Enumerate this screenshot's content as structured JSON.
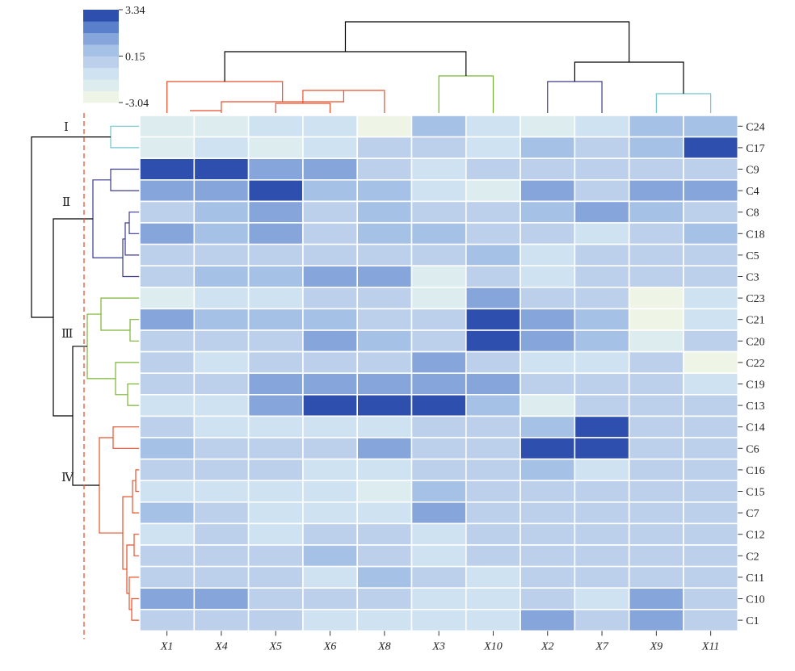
{
  "chart_data": {
    "type": "heatmap",
    "columns": [
      "X1",
      "X4",
      "X5",
      "X6",
      "X8",
      "X3",
      "X10",
      "X2",
      "X7",
      "X9",
      "X11"
    ],
    "rows": [
      "C24",
      "C17",
      "C9",
      "C4",
      "C8",
      "C18",
      "C5",
      "C3",
      "C23",
      "C21",
      "C20",
      "C22",
      "C19",
      "C13",
      "C14",
      "C6",
      "C16",
      "C15",
      "C7",
      "C12",
      "C2",
      "C11",
      "C10",
      "C1"
    ],
    "values": [
      [
        -1.9,
        -1.9,
        -1.4,
        -1.2,
        -3.0,
        0.5,
        -1.2,
        -2.2,
        -1.4,
        0.3,
        0.5
      ],
      [
        -2.0,
        -1.2,
        -1.8,
        -1.2,
        0.1,
        -0.5,
        -1.0,
        0.2,
        -0.1,
        0.5,
        2.8
      ],
      [
        2.7,
        3.3,
        1.6,
        1.5,
        0.1,
        -1.3,
        -0.3,
        -0.1,
        -0.3,
        -0.2,
        -0.3
      ],
      [
        1.4,
        1.4,
        2.6,
        0.3,
        0.3,
        -1.4,
        -2.2,
        1.4,
        -0.3,
        1.3,
        1.3
      ],
      [
        0.1,
        0.5,
        1.5,
        0.1,
        0.4,
        0.1,
        0.1,
        0.3,
        1.4,
        0.2,
        0.1
      ],
      [
        1.5,
        0.3,
        1.5,
        0.0,
        0.3,
        0.2,
        -0.1,
        0.1,
        -1.0,
        0.0,
        0.2
      ],
      [
        -0.2,
        -0.1,
        -0.2,
        -0.1,
        -0.1,
        -0.1,
        0.3,
        -0.8,
        -0.3,
        -0.2,
        0.0
      ],
      [
        -0.1,
        0.3,
        0.2,
        1.5,
        1.5,
        -1.7,
        -0.6,
        -0.9,
        -0.4,
        0.0,
        -0.1
      ],
      [
        -2.1,
        -0.8,
        -0.9,
        -0.3,
        -0.3,
        -2.1,
        1.5,
        -0.6,
        -0.3,
        -2.5,
        -0.8
      ],
      [
        1.6,
        0.2,
        0.2,
        0.2,
        -0.1,
        0.1,
        3.3,
        1.4,
        0.4,
        -3.0,
        -0.7
      ],
      [
        -0.3,
        -0.3,
        -0.3,
        1.6,
        0.3,
        -0.1,
        2.7,
        1.4,
        0.3,
        -2.0,
        -0.3
      ],
      [
        -0.3,
        -1.0,
        -0.5,
        -0.5,
        -0.1,
        1.5,
        0.1,
        -1.0,
        -0.7,
        -0.5,
        -3.0
      ],
      [
        0.1,
        -0.3,
        1.5,
        1.5,
        1.3,
        1.6,
        1.5,
        -0.6,
        -0.3,
        -0.1,
        -0.9
      ],
      [
        -1.3,
        -0.9,
        1.5,
        2.6,
        2.6,
        2.6,
        0.2,
        -1.9,
        -0.4,
        -0.5,
        -0.6
      ],
      [
        -0.3,
        -0.9,
        -1.0,
        -1.1,
        -1.1,
        0.1,
        -0.3,
        0.2,
        3.3,
        0.1,
        0.0
      ],
      [
        0.2,
        -0.1,
        -0.2,
        -0.3,
        1.5,
        -0.2,
        -0.1,
        2.6,
        2.6,
        0.0,
        0.0
      ],
      [
        -0.2,
        -0.2,
        -0.3,
        -1.0,
        -1.0,
        -0.3,
        -0.3,
        0.3,
        -1.1,
        -0.3,
        -0.1
      ],
      [
        -1.1,
        -1.1,
        -1.1,
        -1.1,
        -1.9,
        0.4,
        -0.3,
        -0.4,
        -0.3,
        -0.1,
        0.1
      ],
      [
        0.4,
        0.1,
        -0.8,
        -0.9,
        -1.0,
        1.6,
        -0.3,
        -0.3,
        -0.3,
        -0.3,
        -0.4
      ],
      [
        -0.9,
        -0.2,
        -0.9,
        -0.2,
        -0.1,
        -1.0,
        -0.3,
        -0.2,
        -0.3,
        0.1,
        -0.1
      ],
      [
        -0.2,
        -0.3,
        -0.3,
        0.3,
        -0.2,
        -0.9,
        -0.3,
        -0.3,
        -0.4,
        0.0,
        -0.3
      ],
      [
        0.1,
        0.1,
        -0.3,
        -1.2,
        0.2,
        -0.3,
        -1.1,
        -0.3,
        -0.3,
        -0.2,
        -0.3
      ],
      [
        1.5,
        1.5,
        -0.3,
        -0.3,
        -0.3,
        -0.9,
        -1.1,
        -0.3,
        -0.9,
        1.5,
        -0.3
      ],
      [
        -0.3,
        -0.2,
        -0.3,
        -1.1,
        -1.1,
        -0.9,
        -1.2,
        1.5,
        -0.3,
        1.5,
        -0.3
      ]
    ],
    "vmin": -3.04,
    "vmax": 3.34,
    "colorbar_ticks": [
      "3.34",
      "0.15",
      "-3.04"
    ],
    "colorbar_tick_values": [
      3.34,
      0.15,
      -3.04
    ],
    "colorbar_bins": 8,
    "colors": [
      "#eef5e6",
      "#ddecef",
      "#cfe2f1",
      "#bcd0ec",
      "#a6c1e6",
      "#86a5da",
      "#5a80cc",
      "#2f4fae"
    ],
    "legend_position": "top-left",
    "column_dendrogram": {
      "leaf_order": [
        "X1",
        "X4",
        "X5",
        "X6",
        "X8",
        "X3",
        "X10",
        "X2",
        "X7",
        "X9",
        "X11"
      ],
      "colors": [
        "#e8502c",
        "#7ab534",
        "#3a3a8c",
        "#6ec6d0",
        "#000000"
      ]
    },
    "row_dendrogram": {
      "cut_line_color": "#e8502c",
      "clusters": [
        {
          "label": "Ⅰ",
          "members": [
            "C24",
            "C17"
          ],
          "color": "#6ec6d0"
        },
        {
          "label": "Ⅱ",
          "members": [
            "C9",
            "C4",
            "C8",
            "C18",
            "C5",
            "C3"
          ],
          "color": "#3a3a8c"
        },
        {
          "label": "Ⅲ",
          "members": [
            "C23",
            "C21",
            "C20",
            "C22",
            "C19",
            "C13"
          ],
          "color": "#7ab534"
        },
        {
          "label": "Ⅳ",
          "members": [
            "C14",
            "C6",
            "C16",
            "C15",
            "C7",
            "C12",
            "C2",
            "C11",
            "C10",
            "C1"
          ],
          "color": "#e8502c"
        }
      ]
    }
  }
}
